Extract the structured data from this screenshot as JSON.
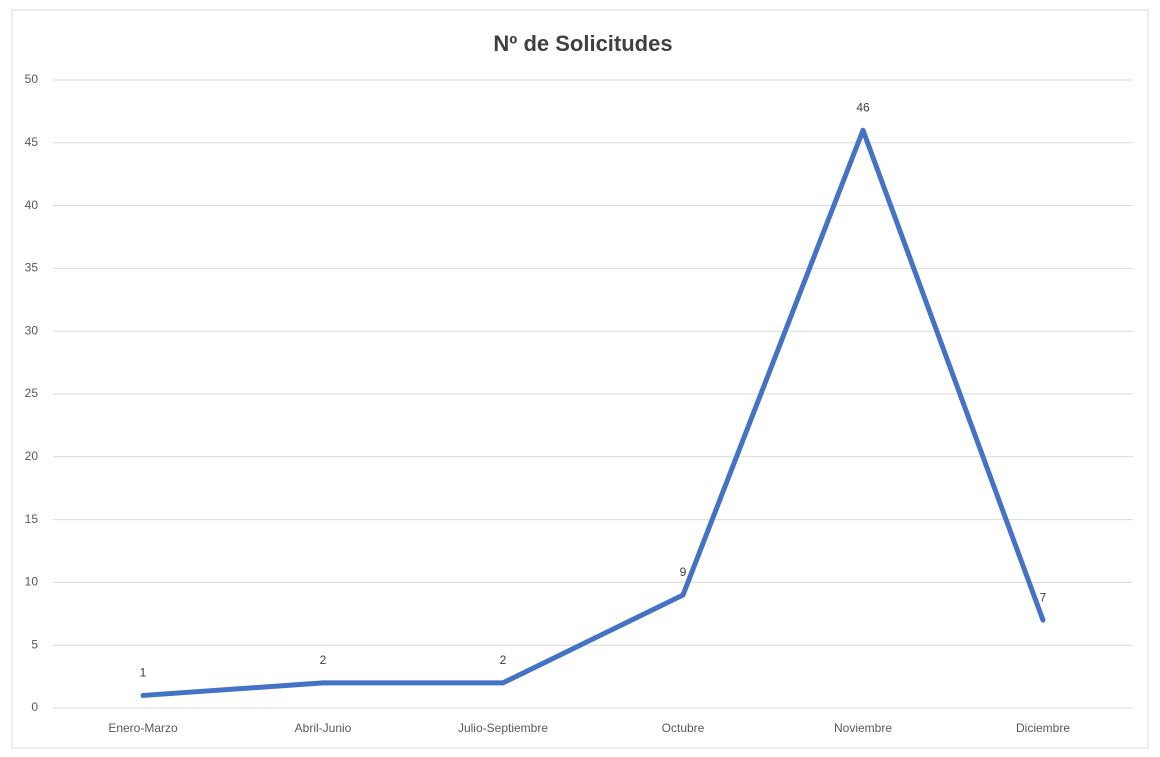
{
  "chart_data": {
    "type": "line",
    "title": "Nº de Solicitudes",
    "categories": [
      "Enero-Marzo",
      "Abril-Junio",
      "Julio-Septiembre",
      "Octubre",
      "Noviembre",
      "Diciembre"
    ],
    "series": [
      {
        "name": "Nº de Solicitudes",
        "color": "#4472c4",
        "values": [
          1,
          2,
          2,
          9,
          46,
          7
        ]
      }
    ],
    "ylim": [
      0,
      50
    ],
    "yticks": [
      0,
      5,
      10,
      15,
      20,
      25,
      30,
      35,
      40,
      45,
      50
    ],
    "grid": true
  }
}
